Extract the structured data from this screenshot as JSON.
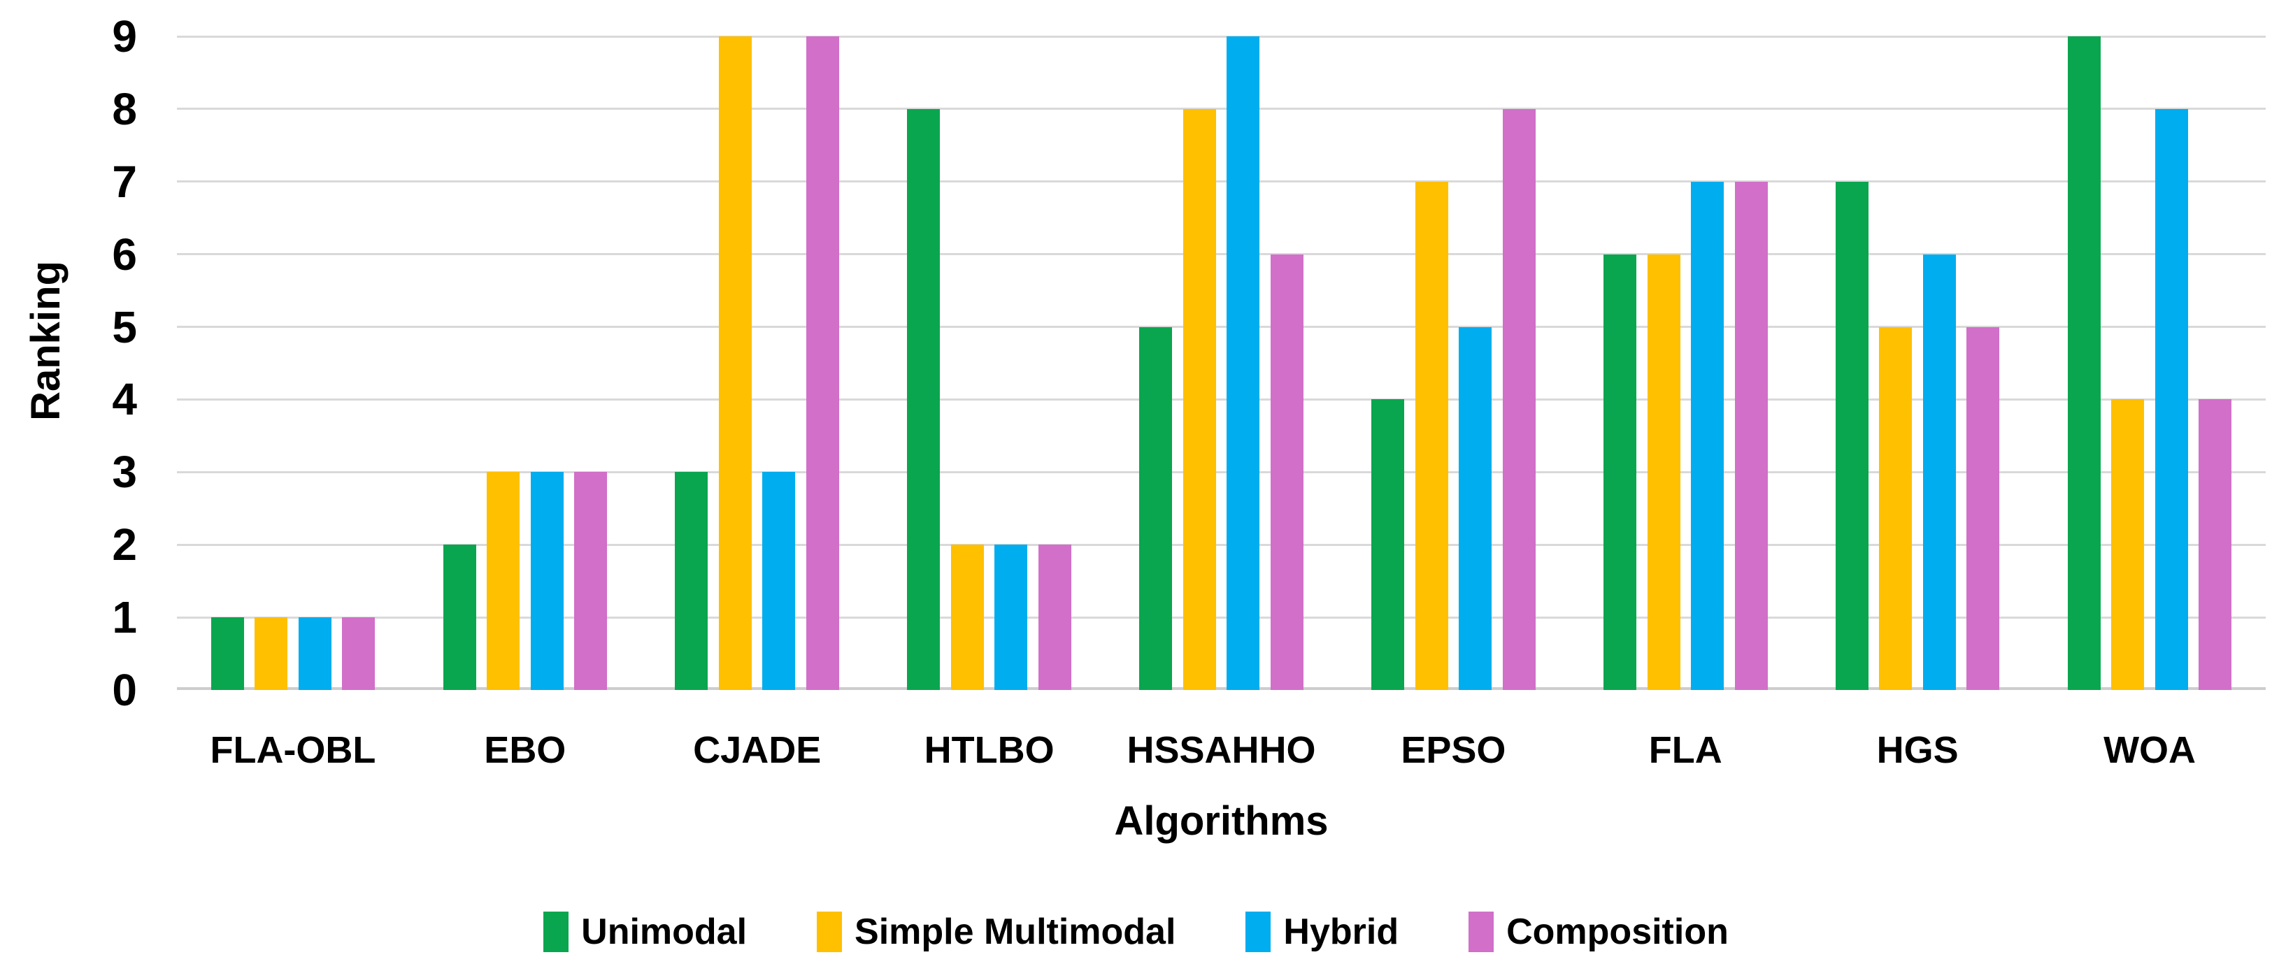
{
  "chart_data": {
    "type": "bar",
    "title": "",
    "categories": [
      "FLA-OBL",
      "EBO",
      "CJADE",
      "HTLBO",
      "HSSAHHO",
      "EPSO",
      "FLA",
      "HGS",
      "WOA"
    ],
    "series": [
      {
        "name": "Unimodal",
        "color": "#0AA64F",
        "values": [
          1,
          2,
          3,
          8,
          5,
          4,
          6,
          7,
          9
        ]
      },
      {
        "name": "Simple Multimodal",
        "color": "#FFC000",
        "values": [
          1,
          3,
          9,
          2,
          8,
          7,
          6,
          5,
          4
        ]
      },
      {
        "name": "Hybrid",
        "color": "#00ADEE",
        "values": [
          1,
          3,
          3,
          2,
          9,
          5,
          7,
          6,
          8
        ]
      },
      {
        "name": "Composition",
        "color": "#D16FC9",
        "values": [
          1,
          3,
          9,
          2,
          6,
          8,
          7,
          5,
          4
        ]
      }
    ],
    "xlabel": "Algorithms",
    "ylabel": "Ranking",
    "ylim": [
      0,
      9
    ],
    "y_ticks": [
      "0",
      "1",
      "2",
      "3",
      "4",
      "5",
      "6",
      "7",
      "8",
      "9"
    ],
    "grid": true,
    "legend_position": "bottom",
    "colors": {
      "gridline": "#D9D9D9",
      "baseline": "#CDCDCD",
      "text": "#000000",
      "background": "#FFFFFF"
    }
  }
}
